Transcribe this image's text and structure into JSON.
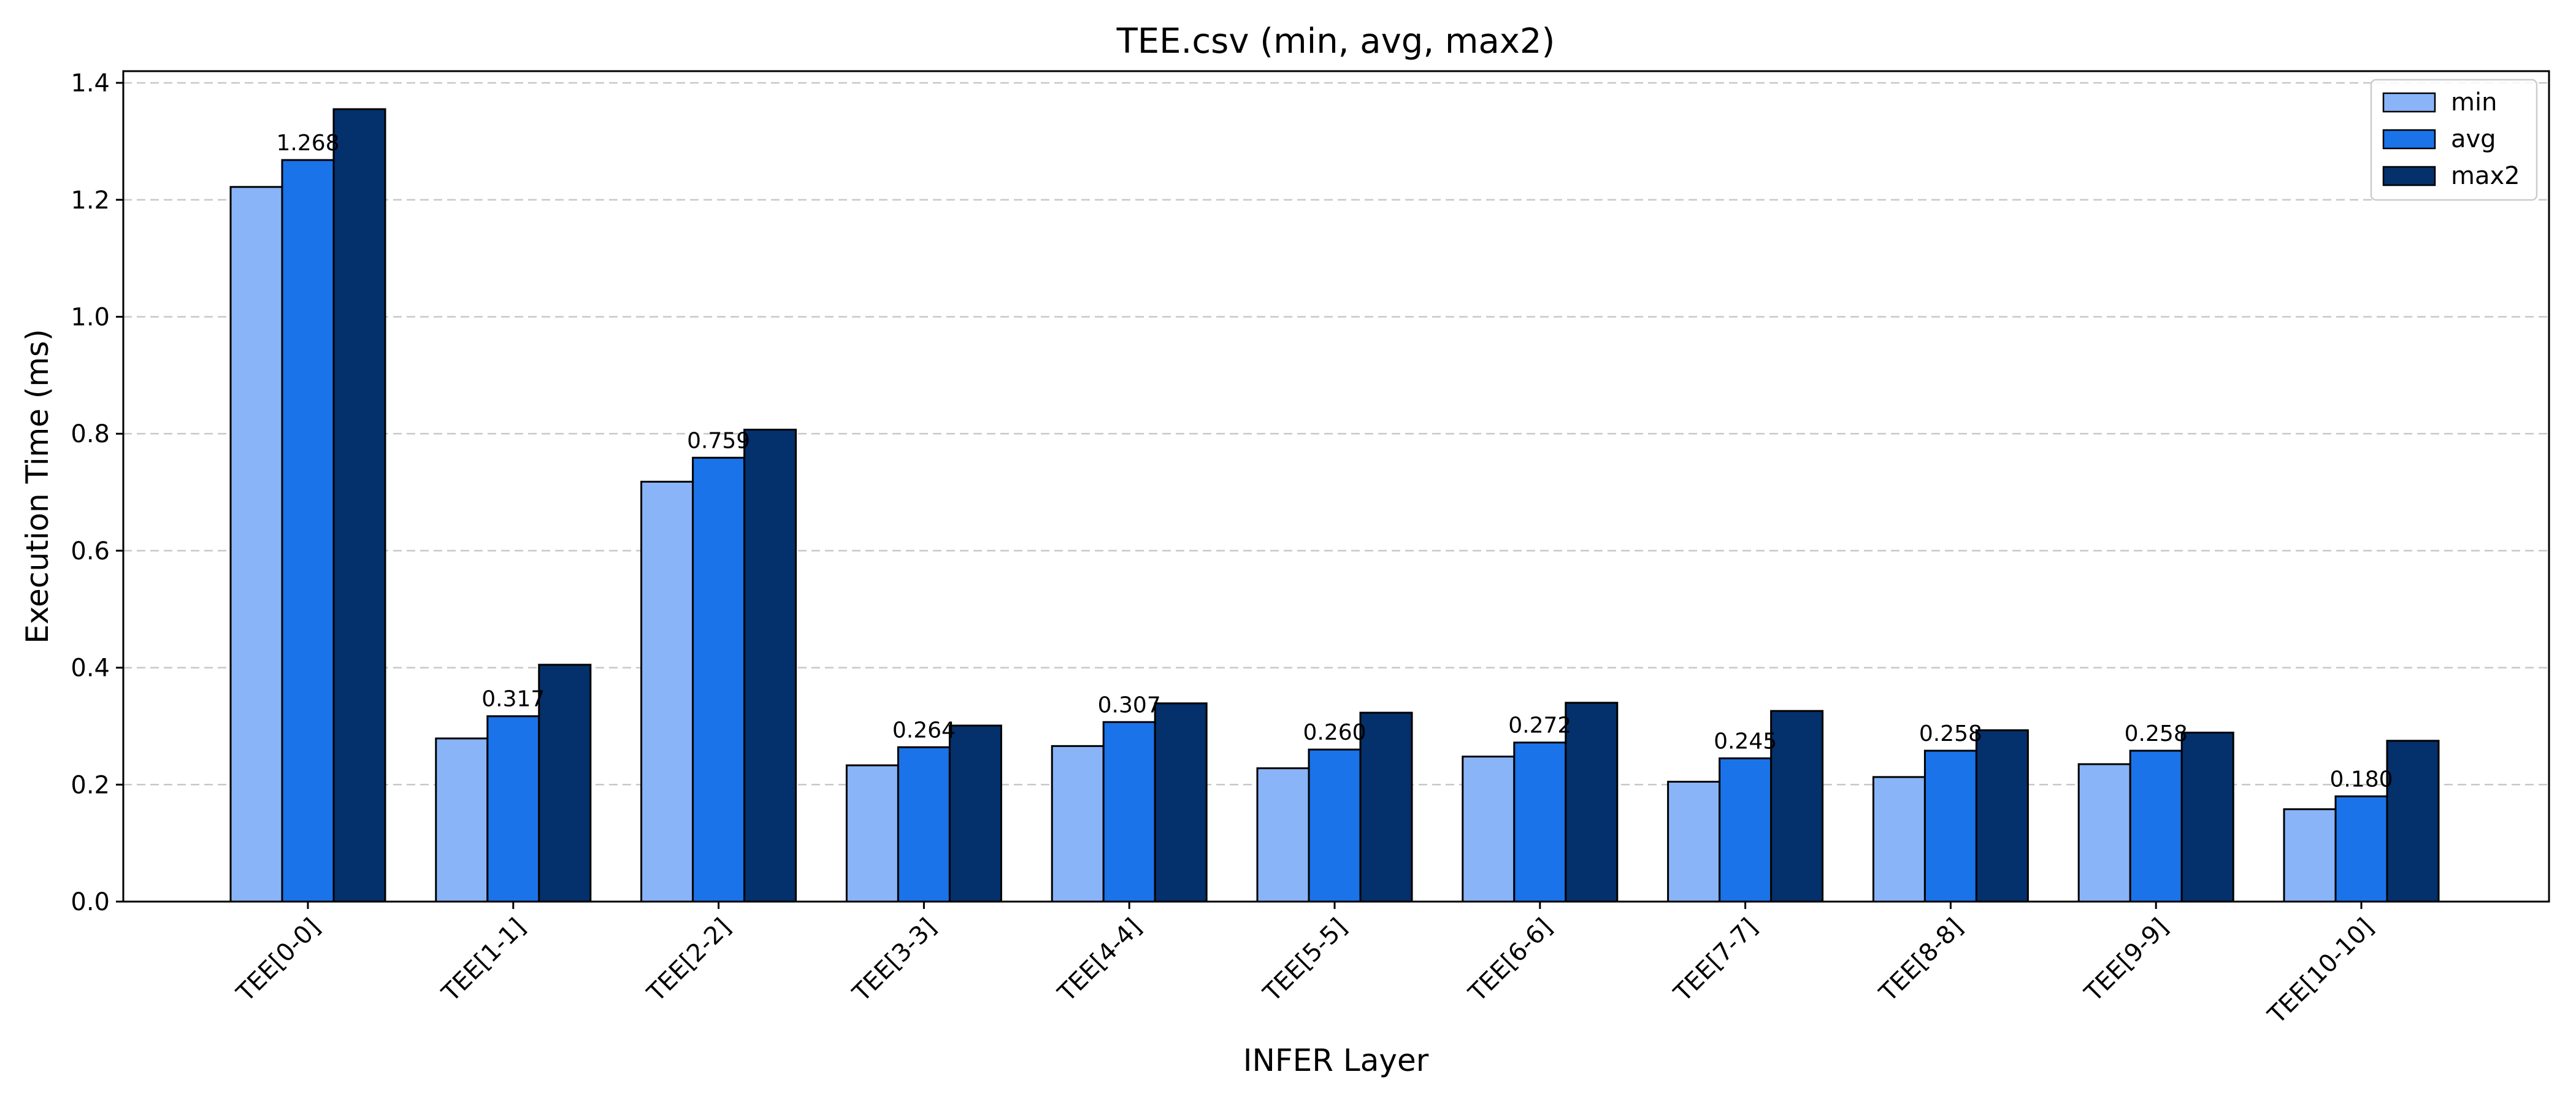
{
  "chart_data": {
    "type": "bar",
    "title": "TEE.csv (min, avg, max2)",
    "xlabel": "INFER Layer",
    "ylabel": "Execution Time (ms)",
    "ylim": [
      0,
      1.42
    ],
    "yticks": [
      0.0,
      0.2,
      0.4,
      0.6,
      0.8,
      1.0,
      1.2,
      1.4
    ],
    "ytick_labels": [
      "0.0",
      "0.2",
      "0.4",
      "0.6",
      "0.8",
      "1.0",
      "1.2",
      "1.4"
    ],
    "grid": "y-dashed",
    "legend_position": "top-right",
    "categories": [
      "TEE[0-0]",
      "TEE[1-1]",
      "TEE[2-2]",
      "TEE[3-3]",
      "TEE[4-4]",
      "TEE[5-5]",
      "TEE[6-6]",
      "TEE[7-7]",
      "TEE[8-8]",
      "TEE[9-9]",
      "TEE[10-10]"
    ],
    "series": [
      {
        "name": "min",
        "color": "#8ab4f8",
        "values": [
          1.222,
          0.279,
          0.718,
          0.233,
          0.266,
          0.228,
          0.248,
          0.205,
          0.213,
          0.235,
          0.158
        ]
      },
      {
        "name": "avg",
        "color": "#1a73e8",
        "values": [
          1.268,
          0.317,
          0.759,
          0.264,
          0.307,
          0.26,
          0.272,
          0.245,
          0.258,
          0.258,
          0.18
        ]
      },
      {
        "name": "max2",
        "color": "#04306b",
        "values": [
          1.355,
          0.405,
          0.807,
          0.301,
          0.339,
          0.323,
          0.34,
          0.326,
          0.293,
          0.289,
          0.275
        ]
      }
    ],
    "data_labels": [
      "1.268",
      "0.317",
      "0.759",
      "0.264",
      "0.307",
      "0.260",
      "0.272",
      "0.245",
      "0.258",
      "0.258",
      "0.180"
    ]
  }
}
